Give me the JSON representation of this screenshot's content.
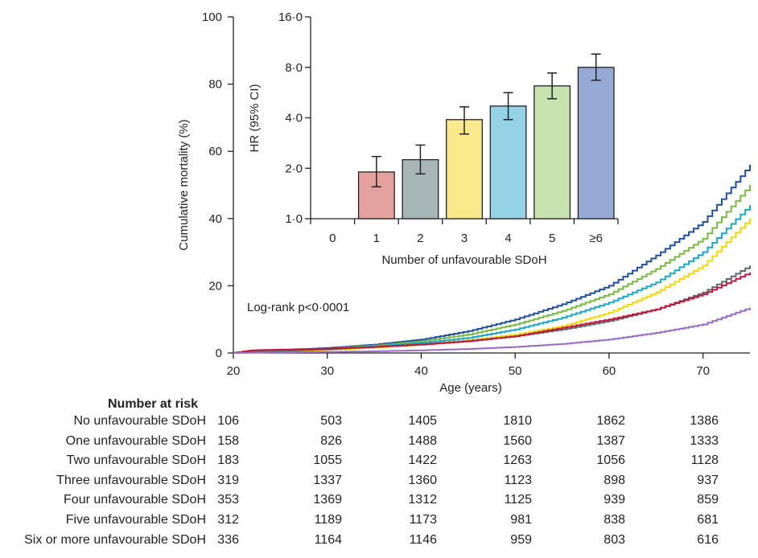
{
  "chart_data": [
    {
      "type": "line",
      "ylabel": "Cumulative mortality (%)",
      "xlabel": "Age (years)",
      "xlim": [
        20,
        75
      ],
      "ylim": [
        0,
        100
      ],
      "xticks": [
        20,
        30,
        40,
        50,
        60,
        70
      ],
      "yticks": [
        0,
        20,
        40,
        60,
        80,
        100
      ],
      "annotation": "Log-rank p<0·0001",
      "series": [
        {
          "color": "#1f4e9c",
          "x": [
            20,
            22,
            25,
            30,
            35,
            40,
            45,
            50,
            55,
            60,
            65,
            70,
            75
          ],
          "y": [
            0,
            0.5,
            0.8,
            1.5,
            2.5,
            4,
            6.5,
            10,
            14.5,
            20,
            29,
            39,
            56
          ]
        },
        {
          "color": "#78b843",
          "x": [
            20,
            22,
            25,
            30,
            35,
            40,
            45,
            50,
            55,
            60,
            65,
            70,
            75
          ],
          "y": [
            0,
            0.4,
            0.7,
            1.3,
            2.2,
            3.5,
            5.5,
            8.5,
            12.5,
            17.5,
            25,
            34,
            50
          ]
        },
        {
          "color": "#1aa6c9",
          "x": [
            20,
            22,
            25,
            30,
            35,
            40,
            45,
            50,
            55,
            60,
            65,
            70,
            75
          ],
          "y": [
            0,
            0.3,
            0.6,
            1.1,
            2,
            3,
            4.5,
            7,
            10.5,
            15,
            21,
            30,
            44
          ]
        },
        {
          "color": "#f2d800",
          "x": [
            20,
            22,
            25,
            30,
            35,
            40,
            45,
            50,
            55,
            60,
            65,
            70,
            75
          ],
          "y": [
            0,
            0.2,
            0.4,
            0.9,
            1.6,
            2.5,
            3.8,
            5.5,
            8,
            12,
            18,
            26,
            40
          ]
        },
        {
          "color": "#5b6b6b",
          "x": [
            20,
            22,
            25,
            30,
            35,
            40,
            45,
            50,
            55,
            60,
            65,
            70,
            75
          ],
          "y": [
            0,
            0.3,
            0.6,
            1.1,
            1.8,
            2.6,
            3.6,
            5,
            7,
            9.5,
            13,
            18,
            26
          ]
        },
        {
          "color": "#c0183c",
          "x": [
            20,
            22,
            25,
            30,
            35,
            40,
            45,
            50,
            55,
            60,
            65,
            70,
            75
          ],
          "y": [
            0,
            0.8,
            1,
            1.3,
            1.8,
            2.5,
            3.5,
            5,
            7.5,
            10,
            13,
            17.5,
            24
          ]
        },
        {
          "color": "#9a6bbf",
          "x": [
            20,
            22,
            25,
            30,
            35,
            40,
            45,
            50,
            55,
            60,
            65,
            70,
            75
          ],
          "y": [
            0,
            0.1,
            0.2,
            0.3,
            0.5,
            0.8,
            1.2,
            1.8,
            2.7,
            4,
            6,
            8.5,
            13.5
          ]
        }
      ]
    },
    {
      "type": "bar",
      "ylabel": "HR (95% CI)",
      "xlabel": "Number of unfavourable SDoH",
      "categories": [
        "0",
        "1",
        "2",
        "3",
        "4",
        "5",
        "≥6"
      ],
      "yscale": "log2",
      "ylim": [
        1,
        16
      ],
      "yticks": [
        "1·0",
        "2·0",
        "4·0",
        "8·0",
        "16·0"
      ],
      "ytick_values": [
        1,
        2,
        4,
        8,
        16
      ],
      "values": [
        null,
        1.9,
        2.25,
        3.9,
        4.7,
        6.2,
        8.0
      ],
      "ci_low": [
        null,
        1.55,
        1.85,
        3.2,
        3.9,
        5.2,
        6.7
      ],
      "ci_high": [
        null,
        2.35,
        2.75,
        4.65,
        5.65,
        7.4,
        9.6
      ],
      "colors": [
        "#ffffff",
        "#e5a19e",
        "#a9b6b8",
        "#faea8c",
        "#95d2e6",
        "#c7e2ae",
        "#97a9d5"
      ]
    }
  ],
  "risk_table": {
    "title": "Number at risk",
    "rows": [
      {
        "label": "No unfavourable SDoH",
        "values": [
          "106",
          "503",
          "1405",
          "1810",
          "1862",
          "1386"
        ]
      },
      {
        "label": "One unfavourable SDoH",
        "values": [
          "158",
          "826",
          "1488",
          "1560",
          "1387",
          "1333"
        ]
      },
      {
        "label": "Two unfavourable SDoH",
        "values": [
          "183",
          "1055",
          "1422",
          "1263",
          "1056",
          "1128"
        ]
      },
      {
        "label": "Three unfavourable SDoH",
        "values": [
          "319",
          "1337",
          "1360",
          "1123",
          "898",
          "937"
        ]
      },
      {
        "label": "Four unfavourable SDoH",
        "values": [
          "353",
          "1369",
          "1312",
          "1125",
          "939",
          "859"
        ]
      },
      {
        "label": "Five unfavourable SDoH",
        "values": [
          "312",
          "1189",
          "1173",
          "981",
          "838",
          "681"
        ]
      },
      {
        "label": "Six or more unfavourable SDoH",
        "values": [
          "336",
          "1164",
          "1146",
          "959",
          "803",
          "616"
        ]
      }
    ]
  }
}
